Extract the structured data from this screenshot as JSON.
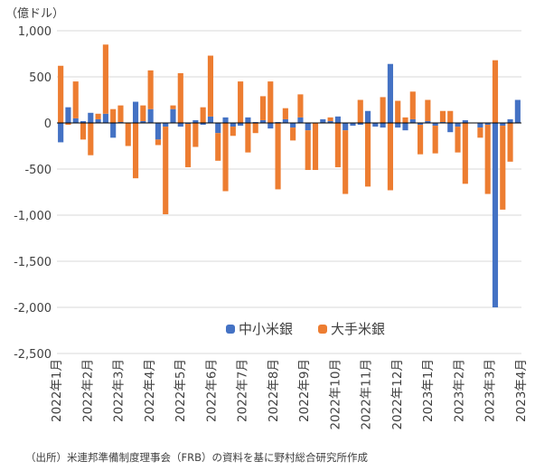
{
  "unit_label": "（億ドル）",
  "source_note": "（出所）米連邦準備制度理事会（FRB）の資料を基に野村総合研究所作成",
  "colors": {
    "small_banks": "#4472C4",
    "large_banks": "#ED7D31",
    "grid": "#d9d9d9",
    "axis": "#000000"
  },
  "chart_data": {
    "type": "bar",
    "stacked": true,
    "frequency": "weekly",
    "ylim": [
      -2500,
      1000
    ],
    "yticks": [
      -2500,
      -2000,
      -1500,
      -1000,
      -500,
      0,
      500,
      1000
    ],
    "ytick_labels": [
      "-2,500",
      "-2,000",
      "-1,500",
      "-1,000",
      "-500",
      "0",
      "500",
      "1,000"
    ],
    "x_labels": [
      "2022年1月",
      "2022年2月",
      "2022年3月",
      "2022年4月",
      "2022年5月",
      "2022年6月",
      "2022年7月",
      "2022年8月",
      "2022年9月",
      "2022年10月",
      "2022年11月",
      "2022年12月",
      "2023年1月",
      "2023年2月",
      "2023年3月",
      "2023年4月"
    ],
    "legend_position": "center",
    "grid": true,
    "series": [
      {
        "name": "中小米銀",
        "values": [
          -210,
          170,
          50,
          20,
          110,
          40,
          100,
          -160,
          10,
          0,
          230,
          20,
          150,
          -180,
          -40,
          150,
          -40,
          -10,
          30,
          -20,
          70,
          -110,
          60,
          -40,
          -30,
          60,
          10,
          30,
          -60,
          10,
          40,
          -50,
          60,
          -80,
          0,
          40,
          20,
          70,
          -80,
          -30,
          -20,
          130,
          -40,
          -50,
          640,
          -50,
          -80,
          40,
          -20,
          20,
          -30,
          10,
          -100,
          -40,
          30,
          0,
          -50,
          -20,
          -2000,
          -30,
          40,
          250
        ]
      },
      {
        "name": "大手米銀",
        "values": [
          620,
          -20,
          400,
          -180,
          -350,
          60,
          750,
          150,
          180,
          -250,
          -600,
          170,
          420,
          -60,
          -950,
          40,
          540,
          -470,
          -260,
          170,
          660,
          -300,
          -740,
          -100,
          450,
          -320,
          -110,
          260,
          450,
          -720,
          120,
          -140,
          250,
          -430,
          -510,
          0,
          40,
          -480,
          -690,
          0,
          250,
          -690,
          0,
          280,
          -730,
          240,
          60,
          300,
          -320,
          230,
          -300,
          120,
          130,
          -280,
          -660,
          0,
          -110,
          -750,
          680,
          -910,
          -420,
          0
        ]
      }
    ]
  }
}
